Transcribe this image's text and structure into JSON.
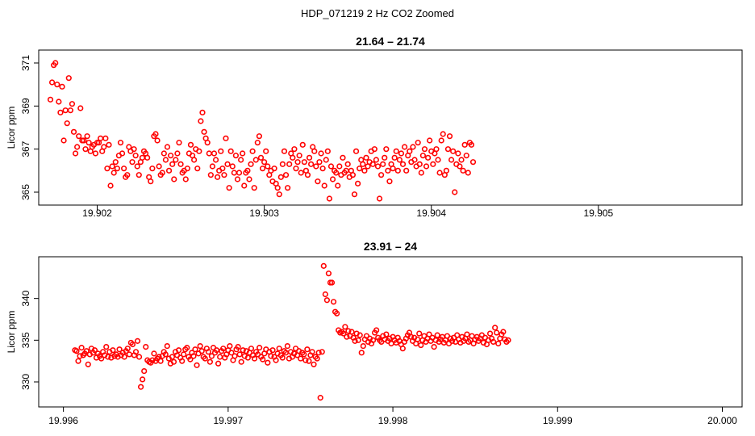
{
  "page": {
    "title": "HDP_071219  2 Hz CO2 Zoomed"
  },
  "colors": {
    "points": "#ff0000",
    "axes": "#000000"
  },
  "chart_data": [
    {
      "type": "scatter",
      "title": "21.64 – 21.74",
      "xlabel": "",
      "ylabel": "Licor ppm",
      "xlim": [
        19.90165,
        19.90586
      ],
      "ylim": [
        364.4,
        371.6
      ],
      "xticks": [
        19.902,
        19.903,
        19.904,
        19.905
      ],
      "xtick_labels": [
        "19.902",
        "19.903",
        "19.904",
        "19.905"
      ],
      "yticks": [
        365,
        367,
        369,
        371
      ],
      "ytick_labels": [
        "365",
        "367",
        "369",
        "371"
      ],
      "grid": false,
      "legend": "none",
      "series": [
        {
          "x_start": 19.90172,
          "x_step": 1e-05,
          "values": [
            369.3,
            370.1,
            370.9,
            371.0,
            370.0,
            369.2,
            368.7,
            369.9,
            367.4,
            368.8,
            368.2,
            370.3,
            368.8,
            369.1,
            367.8,
            366.8,
            367.1,
            367.6,
            368.9,
            367.4,
            367.4,
            367.0,
            367.6,
            367.3,
            366.9,
            367.1,
            367.2,
            366.8,
            367.3,
            367.3,
            367.5,
            366.9,
            367.1,
            367.5,
            366.1,
            367.2,
            365.3,
            366.2,
            365.9,
            366.4,
            366.1,
            366.7,
            367.3,
            366.8,
            366.1,
            365.7,
            365.8,
            367.1,
            366.9,
            366.4,
            367.0,
            366.7,
            366.2,
            365.8,
            366.4,
            366.6,
            366.9,
            366.8,
            366.6,
            365.7,
            365.5,
            366.1,
            367.6,
            367.7,
            367.4,
            366.2,
            365.8,
            365.9,
            366.8,
            366.5,
            367.1,
            366.0,
            366.7,
            366.3,
            365.6,
            366.5,
            366.8,
            367.3,
            366.3,
            365.9,
            366.0,
            365.6,
            366.1,
            366.8,
            367.2,
            366.7,
            366.5,
            367.0,
            366.1,
            366.9,
            368.3,
            368.7,
            367.8,
            367.5,
            367.3,
            366.8,
            365.8,
            366.2,
            366.8,
            366.5,
            365.7,
            366.0,
            366.9,
            366.1,
            365.8,
            367.5,
            366.3,
            365.2,
            366.9,
            366.2,
            365.9,
            366.7,
            365.6,
            365.9,
            366.5,
            366.8,
            365.3,
            365.9,
            366.0,
            365.6,
            366.3,
            366.9,
            365.2,
            366.5,
            367.3,
            367.6,
            366.6,
            366.1,
            366.4,
            366.9,
            366.2,
            365.8,
            366.0,
            365.5,
            366.1,
            365.4,
            365.2,
            364.9,
            365.7,
            366.3,
            366.9,
            365.8,
            365.2,
            366.3,
            366.8,
            366.6,
            367.0,
            366.1,
            366.4,
            366.7,
            365.9,
            367.2,
            366.4,
            366.0,
            365.8,
            366.6,
            366.3,
            367.1,
            366.9,
            366.2,
            365.5,
            366.4,
            366.8,
            366.1,
            365.3,
            366.5,
            366.9,
            364.7,
            366.2,
            365.6,
            366.0,
            365.9,
            365.3,
            366.2,
            365.8,
            366.6,
            365.9,
            366.0,
            366.3,
            365.7,
            366.0,
            365.8,
            364.9,
            366.9,
            365.4,
            366.1,
            366.5,
            366.3,
            366.0,
            366.6,
            366.2,
            366.4,
            366.9,
            366.3,
            367.0,
            366.5,
            366.2,
            364.7,
            365.8,
            366.3,
            366.6,
            367.0,
            366.0,
            365.5,
            366.3,
            366.1,
            366.6,
            366.9,
            366.0,
            366.5,
            366.8,
            366.3,
            367.1,
            366.0,
            366.7,
            366.9,
            366.4,
            367.1,
            366.5,
            366.2,
            367.3,
            366.3,
            365.9,
            366.7,
            367.0,
            366.2,
            366.6,
            367.4,
            366.9,
            366.3,
            366.8,
            367.0,
            366.5,
            365.9,
            367.4,
            367.7,
            365.8,
            366.0,
            367.0,
            367.6,
            366.5,
            366.9,
            365.0,
            366.3,
            366.8,
            366.2,
            366.5,
            366.0,
            367.2,
            366.7,
            365.9,
            367.3,
            367.2,
            366.4
          ]
        }
      ]
    },
    {
      "type": "scatter",
      "title": "23.91 – 24",
      "xlabel": "",
      "ylabel": "Licor ppm",
      "xlim": [
        19.99585,
        20.00012
      ],
      "ylim": [
        327.0,
        345.0
      ],
      "xticks": [
        19.996,
        19.997,
        19.998,
        19.999,
        20.0
      ],
      "xtick_labels": [
        "19.996",
        "19.997",
        "19.998",
        "19.999",
        "20.000"
      ],
      "yticks": [
        330,
        335,
        340
      ],
      "ytick_labels": [
        "330",
        "335",
        "340"
      ],
      "grid": false,
      "legend": "none",
      "series": [
        {
          "x_start": 19.99607,
          "x_step": 1e-05,
          "values": [
            333.8,
            333.7,
            332.5,
            333.1,
            334.1,
            333.2,
            333.4,
            333.7,
            332.1,
            333.3,
            334.0,
            333.5,
            333.8,
            332.9,
            333.4,
            333.1,
            332.8,
            333.6,
            333.2,
            334.2,
            333.0,
            333.6,
            332.9,
            333.8,
            333.1,
            333.3,
            333.0,
            333.9,
            333.2,
            333.5,
            333.0,
            333.7,
            334.0,
            333.3,
            334.7,
            334.5,
            333.2,
            333.6,
            334.9,
            333.0,
            329.4,
            330.3,
            331.3,
            334.2,
            332.6,
            332.4,
            332.3,
            332.6,
            333.4,
            332.5,
            332.8,
            333.0,
            332.5,
            333.1,
            333.6,
            333.3,
            334.3,
            332.8,
            332.2,
            333.0,
            332.4,
            333.6,
            333.2,
            333.8,
            332.9,
            332.5,
            333.3,
            333.9,
            334.1,
            333.0,
            332.7,
            333.5,
            333.1,
            333.9,
            332.0,
            333.4,
            334.3,
            333.7,
            333.0,
            332.8,
            334.0,
            333.6,
            332.4,
            333.1,
            334.1,
            333.5,
            333.8,
            332.2,
            333.0,
            333.7,
            334.0,
            332.9,
            333.3,
            333.8,
            334.3,
            333.5,
            332.6,
            333.1,
            333.9,
            334.2,
            333.3,
            332.4,
            333.8,
            333.1,
            333.7,
            332.9,
            333.5,
            334.0,
            333.2,
            332.8,
            333.6,
            333.3,
            334.1,
            333.0,
            332.7,
            333.4,
            333.9,
            332.3,
            333.6,
            333.1,
            333.8,
            333.0,
            332.6,
            333.4,
            334.0,
            333.2,
            332.9,
            333.7,
            333.5,
            334.3,
            332.8,
            333.6,
            333.0,
            333.4,
            334.0,
            333.2,
            333.7,
            332.8,
            333.5,
            333.3,
            332.6,
            333.9,
            332.5,
            333.2,
            333.6,
            332.1,
            333.0,
            332.8,
            333.5,
            328.1,
            333.6,
            343.9,
            340.5,
            339.8,
            343.0,
            341.9,
            341.9,
            339.6,
            338.4,
            338.2,
            336.2,
            335.9,
            336.0,
            335.8,
            336.6,
            335.4,
            336.1,
            335.5,
            336.0,
            335.3,
            334.9,
            335.8,
            335.0,
            335.6,
            333.5,
            334.3,
            335.1,
            335.5,
            334.8,
            335.2,
            334.6,
            335.0,
            335.9,
            336.2,
            335.3,
            335.0,
            334.8,
            335.5,
            335.1,
            335.7,
            334.9,
            335.2,
            334.6,
            335.4,
            335.0,
            334.7,
            335.3,
            334.9,
            334.5,
            334.0,
            334.8,
            335.2,
            335.6,
            335.9,
            335.4,
            334.9,
            335.3,
            334.6,
            335.1,
            335.8,
            334.4,
            335.0,
            335.5,
            334.8,
            335.2,
            335.7,
            334.9,
            335.3,
            334.2,
            335.0,
            335.6,
            334.8,
            335.1,
            335.4,
            334.7,
            335.0,
            335.5,
            334.6,
            335.2,
            334.9,
            335.3,
            334.8,
            335.6,
            335.1,
            334.7,
            335.4,
            334.9,
            335.2,
            335.7,
            334.8,
            335.0,
            335.5,
            334.6,
            335.1,
            335.4,
            334.9,
            335.2,
            335.6,
            334.7,
            335.3,
            334.5,
            335.0,
            335.8,
            335.2,
            334.8,
            336.5,
            335.9,
            334.6,
            335.2,
            335.7,
            336.0,
            335.1,
            334.8,
            335.0
          ]
        }
      ]
    }
  ]
}
